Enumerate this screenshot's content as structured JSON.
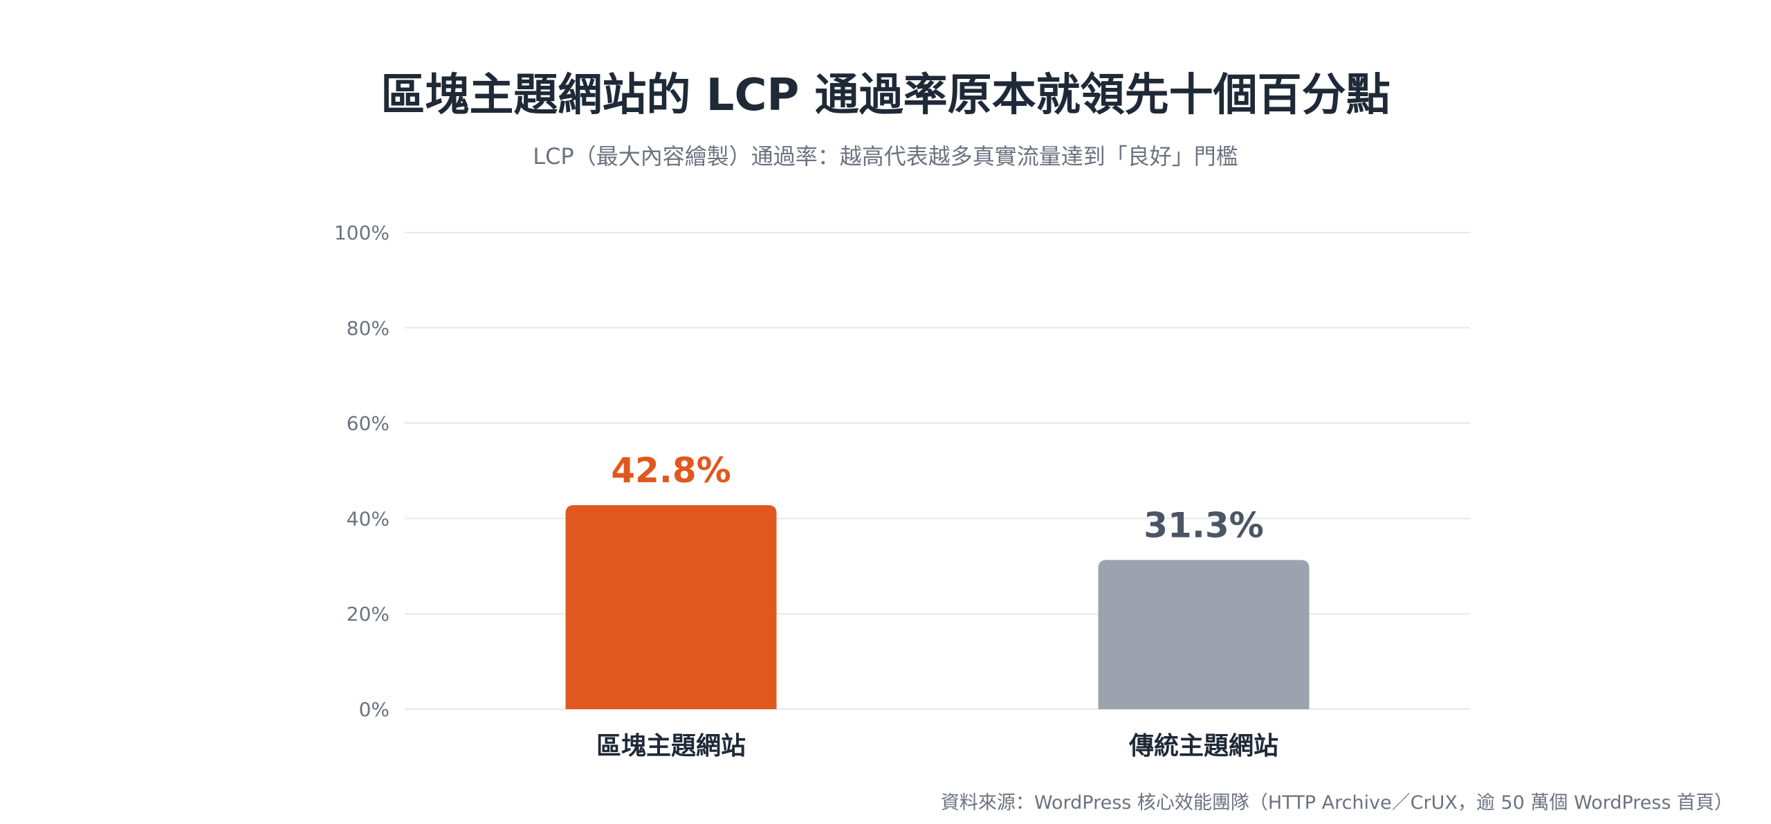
{
  "chart_data": {
    "type": "bar",
    "title": "區塊主題網站的 LCP 通過率原本就領先十個百分點",
    "subtitle": "LCP（最大內容繪製）通過率：越高代表越多真實流量達到「良好」門檻",
    "categories": [
      "區塊主題網站",
      "傳統主題網站"
    ],
    "values": [
      42.8,
      31.3
    ],
    "value_labels": [
      "42.8%",
      "31.3%"
    ],
    "bar_colors": [
      "#e1581f",
      "#9ca3af"
    ],
    "label_colors": [
      "#e1581f",
      "#4b5563"
    ],
    "ylim": [
      0,
      100
    ],
    "yticks": [
      0,
      20,
      40,
      60,
      80,
      100
    ],
    "ytick_labels": [
      "0%",
      "20%",
      "40%",
      "60%",
      "80%",
      "100%"
    ],
    "xlabel": "",
    "ylabel": "",
    "grid": true,
    "source": "資料來源：WordPress 核心效能團隊（HTTP Archive／CrUX，逾 50 萬個 WordPress 首頁）"
  }
}
